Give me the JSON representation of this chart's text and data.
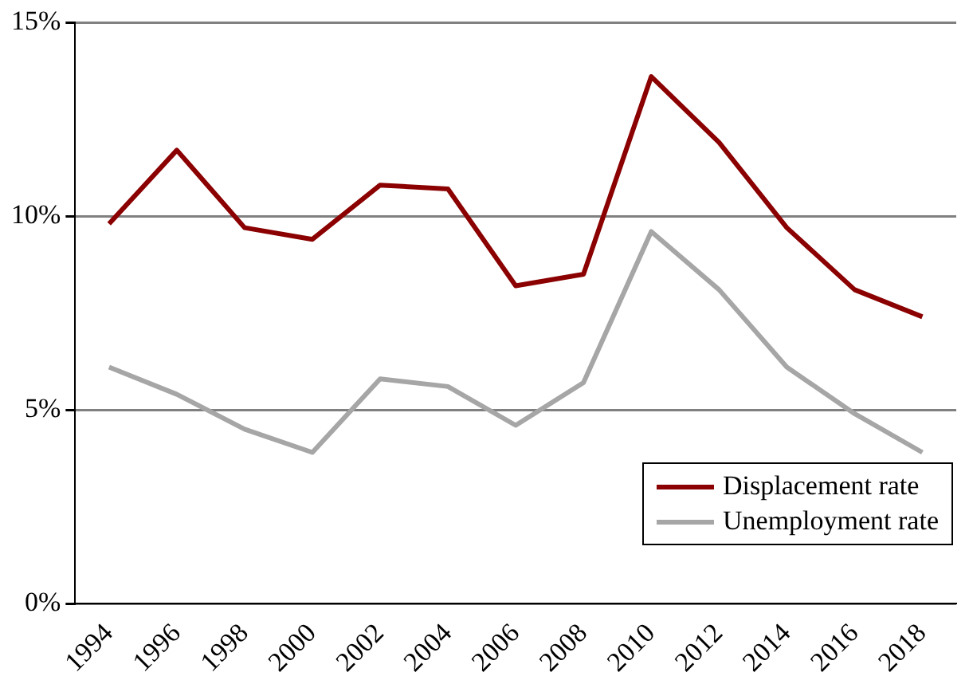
{
  "chart_data": {
    "type": "line",
    "categories": [
      "1994",
      "1996",
      "1998",
      "2000",
      "2002",
      "2004",
      "2006",
      "2008",
      "2010",
      "2012",
      "2014",
      "2016",
      "2018"
    ],
    "series": [
      {
        "name": "Displacement rate",
        "color": "#8b0000",
        "values": [
          9.8,
          11.7,
          9.7,
          9.4,
          10.8,
          10.7,
          8.2,
          8.5,
          13.6,
          11.9,
          9.7,
          8.1,
          7.4
        ]
      },
      {
        "name": "Unemployment rate",
        "color": "#a6a6a6",
        "values": [
          6.1,
          5.4,
          4.5,
          3.9,
          5.8,
          5.6,
          4.6,
          5.7,
          9.6,
          8.1,
          6.1,
          4.9,
          3.9
        ]
      }
    ],
    "ylim": [
      0,
      15
    ],
    "yticks": [
      {
        "value": 0,
        "label": "0%"
      },
      {
        "value": 5,
        "label": "5%"
      },
      {
        "value": 10,
        "label": "10%"
      },
      {
        "value": 15,
        "label": "15%"
      }
    ],
    "grid": "y",
    "legend": "bottom right",
    "marker": "none",
    "line_style": "solid"
  }
}
